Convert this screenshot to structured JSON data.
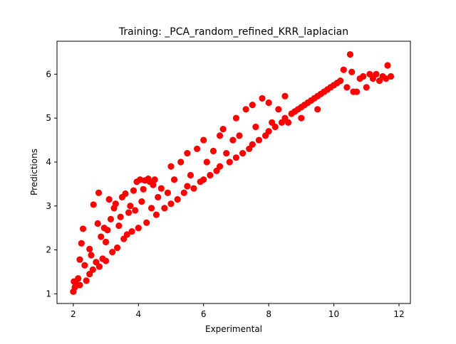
{
  "chart_data": {
    "type": "scatter",
    "title": "Training: _PCA_random_refined_KRR_laplacian",
    "xlabel": "Experimental",
    "ylabel": "Predictions",
    "xlim": [
      1.5,
      12.35
    ],
    "ylim": [
      0.78,
      6.75
    ],
    "xticks": [
      2,
      4,
      6,
      8,
      10,
      12
    ],
    "yticks": [
      1,
      2,
      3,
      4,
      5,
      6
    ],
    "grid": false,
    "legend": "none",
    "marker_color": "#ff0000",
    "points": [
      [
        2.0,
        1.05
      ],
      [
        2.02,
        1.28
      ],
      [
        2.05,
        1.15
      ],
      [
        2.1,
        1.22
      ],
      [
        2.15,
        1.35
      ],
      [
        2.2,
        1.2
      ],
      [
        2.2,
        1.78
      ],
      [
        2.25,
        2.15
      ],
      [
        2.3,
        2.48
      ],
      [
        2.35,
        1.65
      ],
      [
        2.4,
        1.3
      ],
      [
        2.5,
        1.45
      ],
      [
        2.5,
        2.02
      ],
      [
        2.55,
        1.88
      ],
      [
        2.6,
        1.55
      ],
      [
        2.62,
        3.03
      ],
      [
        2.7,
        1.72
      ],
      [
        2.75,
        2.6
      ],
      [
        2.78,
        3.3
      ],
      [
        2.8,
        1.62
      ],
      [
        2.85,
        2.3
      ],
      [
        2.9,
        1.8
      ],
      [
        2.95,
        2.5
      ],
      [
        3.0,
        1.75
      ],
      [
        3.0,
        2.18
      ],
      [
        3.05,
        2.45
      ],
      [
        3.1,
        3.15
      ],
      [
        3.15,
        2.7
      ],
      [
        3.2,
        1.95
      ],
      [
        3.25,
        2.95
      ],
      [
        3.3,
        3.05
      ],
      [
        3.35,
        2.05
      ],
      [
        3.4,
        2.55
      ],
      [
        3.45,
        2.75
      ],
      [
        3.5,
        3.2
      ],
      [
        3.55,
        2.25
      ],
      [
        3.6,
        3.28
      ],
      [
        3.65,
        2.35
      ],
      [
        3.7,
        2.85
      ],
      [
        3.75,
        3.0
      ],
      [
        3.8,
        2.42
      ],
      [
        3.85,
        3.35
      ],
      [
        3.9,
        2.9
      ],
      [
        3.95,
        3.55
      ],
      [
        4.0,
        2.5
      ],
      [
        4.05,
        3.6
      ],
      [
        4.1,
        3.1
      ],
      [
        4.15,
        3.38
      ],
      [
        4.2,
        3.58
      ],
      [
        4.25,
        2.62
      ],
      [
        4.3,
        3.62
      ],
      [
        4.35,
        3.55
      ],
      [
        4.4,
        2.95
      ],
      [
        4.45,
        3.48
      ],
      [
        4.5,
        3.6
      ],
      [
        4.55,
        2.8
      ],
      [
        4.6,
        3.2
      ],
      [
        4.7,
        3.4
      ],
      [
        4.8,
        2.95
      ],
      [
        4.9,
        3.3
      ],
      [
        5.0,
        3.05
      ],
      [
        5.0,
        3.9
      ],
      [
        5.1,
        3.6
      ],
      [
        5.2,
        3.15
      ],
      [
        5.3,
        4.0
      ],
      [
        5.4,
        3.3
      ],
      [
        5.5,
        3.45
      ],
      [
        5.5,
        4.2
      ],
      [
        5.6,
        3.7
      ],
      [
        5.7,
        3.4
      ],
      [
        5.8,
        4.3
      ],
      [
        5.9,
        3.55
      ],
      [
        6.0,
        3.6
      ],
      [
        6.0,
        4.5
      ],
      [
        6.1,
        4.0
      ],
      [
        6.2,
        3.7
      ],
      [
        6.3,
        4.25
      ],
      [
        6.4,
        3.8
      ],
      [
        6.5,
        3.9
      ],
      [
        6.5,
        4.6
      ],
      [
        6.6,
        4.75
      ],
      [
        6.7,
        4.2
      ],
      [
        6.8,
        4.0
      ],
      [
        6.9,
        4.5
      ],
      [
        7.0,
        4.1
      ],
      [
        7.0,
        5.0
      ],
      [
        7.1,
        4.6
      ],
      [
        7.2,
        4.2
      ],
      [
        7.3,
        5.2
      ],
      [
        7.4,
        4.3
      ],
      [
        7.5,
        4.4
      ],
      [
        7.5,
        5.3
      ],
      [
        7.6,
        4.8
      ],
      [
        7.7,
        4.5
      ],
      [
        7.8,
        5.45
      ],
      [
        7.9,
        4.6
      ],
      [
        8.0,
        4.7
      ],
      [
        8.0,
        5.35
      ],
      [
        8.1,
        4.9
      ],
      [
        8.2,
        4.8
      ],
      [
        8.3,
        5.2
      ],
      [
        8.4,
        4.9
      ],
      [
        8.5,
        5.0
      ],
      [
        8.5,
        5.5
      ],
      [
        8.6,
        4.9
      ],
      [
        8.7,
        5.1
      ],
      [
        8.8,
        5.15
      ],
      [
        8.9,
        5.2
      ],
      [
        9.0,
        5.25
      ],
      [
        9.0,
        5.0
      ],
      [
        9.1,
        5.3
      ],
      [
        9.2,
        5.35
      ],
      [
        9.3,
        5.4
      ],
      [
        9.4,
        5.45
      ],
      [
        9.5,
        5.5
      ],
      [
        9.5,
        5.2
      ],
      [
        9.6,
        5.55
      ],
      [
        9.7,
        5.6
      ],
      [
        9.8,
        5.65
      ],
      [
        9.9,
        5.7
      ],
      [
        10.0,
        5.75
      ],
      [
        10.1,
        5.8
      ],
      [
        10.2,
        5.85
      ],
      [
        10.3,
        6.1
      ],
      [
        10.4,
        5.7
      ],
      [
        10.5,
        6.45
      ],
      [
        10.55,
        6.05
      ],
      [
        10.6,
        5.6
      ],
      [
        10.7,
        5.6
      ],
      [
        10.8,
        5.9
      ],
      [
        10.9,
        5.95
      ],
      [
        11.0,
        5.7
      ],
      [
        11.1,
        6.0
      ],
      [
        11.2,
        5.9
      ],
      [
        11.3,
        6.0
      ],
      [
        11.4,
        5.85
      ],
      [
        11.5,
        5.95
      ],
      [
        11.6,
        5.9
      ],
      [
        11.65,
        6.2
      ],
      [
        11.75,
        5.95
      ]
    ]
  }
}
